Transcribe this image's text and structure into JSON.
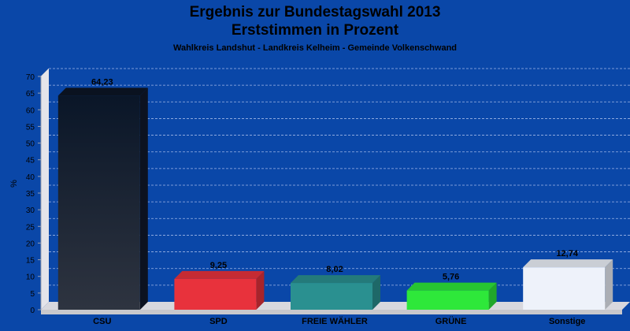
{
  "chart_data": {
    "type": "bar",
    "title_line1": "Ergebnis zur Bundestagswahl 2013",
    "title_line2": "Erststimmen in Prozent",
    "subtitle": "Wahlkreis Landshut - Landkreis Kelheim - Gemeinde Volkenschwand",
    "ylabel": "%",
    "xlabel": "",
    "ylim": [
      0,
      70
    ],
    "yticks": [
      0,
      5,
      10,
      15,
      20,
      25,
      30,
      35,
      40,
      45,
      50,
      55,
      60,
      65,
      70
    ],
    "grid": true,
    "categories": [
      "CSU",
      "SPD",
      "FREIE WÄHLER",
      "GRÜNE",
      "Sonstige"
    ],
    "values": [
      64.23,
      9.25,
      8.02,
      5.76,
      12.74
    ],
    "value_labels": [
      "64,23",
      "9,25",
      "8,02",
      "5,76",
      "12,74"
    ],
    "colors": [
      "#1a2230",
      "#e8323c",
      "#2a9090",
      "#2ee83a",
      "#eef2fa"
    ],
    "background": "#0a47a8"
  }
}
